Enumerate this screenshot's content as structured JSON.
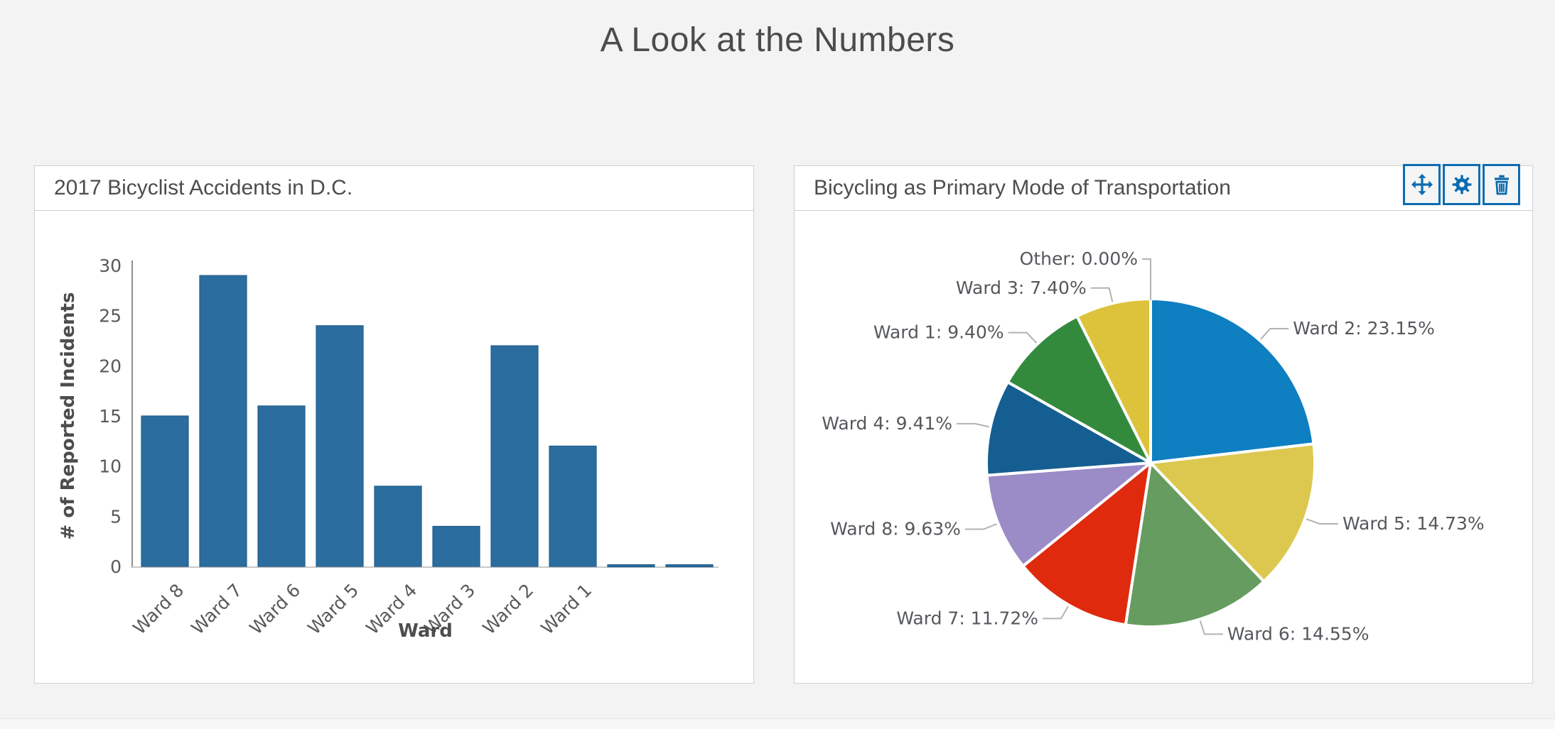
{
  "page": {
    "title": "A Look at the Numbers",
    "background": "#f3f3f4",
    "accent_blue": "#0c6cb0"
  },
  "panels": {
    "bar_widget": {
      "title": "2017 Bicyclist Accidents in D.C."
    },
    "pie_widget": {
      "title": "Bicycling as Primary Mode of Transportation",
      "toolbar": [
        {
          "name": "move",
          "icon": "move-icon"
        },
        {
          "name": "settings",
          "icon": "gear-icon"
        },
        {
          "name": "delete",
          "icon": "trash-icon"
        }
      ]
    }
  },
  "chart_data": [
    {
      "type": "bar",
      "title": "2017 Bicyclist Accidents in D.C.",
      "categories": [
        "Ward 8",
        "Ward 7",
        "Ward 6",
        "Ward 5",
        "Ward 4",
        "Ward 3",
        "Ward 2",
        "Ward 1",
        "",
        ""
      ],
      "values": [
        15,
        29,
        16,
        24,
        8,
        4,
        22,
        12,
        0,
        0
      ],
      "xlabel": "Ward",
      "ylabel": "# of Reported Incidents",
      "ylim": [
        0,
        30
      ],
      "yticks": [
        0,
        5,
        10,
        15,
        20,
        25,
        30
      ],
      "bar_color": "#2b6d9e",
      "bar_edge_color": "#235e8d",
      "axis_color": "#8e8e8e",
      "baseline_color": "#c9c9c9",
      "tick_label_color": "#595959",
      "axis_title_color": "#4d4d4d",
      "grid": false,
      "x_tick_rotation": 45
    },
    {
      "type": "pie",
      "title": "Bicycling as Primary Mode of Transportation",
      "start_angle": "12-o-clock",
      "direction": "clockwise",
      "label_style": "outside-with-leader-lines",
      "label_color": "#55585c",
      "leader_color": "#b3b3b3",
      "slices": [
        {
          "label": "Ward 2",
          "pct": 23.15,
          "display": "Ward 2: 23.15%",
          "color": "#0e7fc1"
        },
        {
          "label": "Ward 5",
          "pct": 14.73,
          "display": "Ward 5: 14.73%",
          "color": "#ddc84f"
        },
        {
          "label": "Ward 6",
          "pct": 14.55,
          "display": "Ward 6: 14.55%",
          "color": "#669c60"
        },
        {
          "label": "Ward 7",
          "pct": 11.72,
          "display": "Ward 7: 11.72%",
          "color": "#df2a0e"
        },
        {
          "label": "Ward 8",
          "pct": 9.63,
          "display": "Ward 8: 9.63%",
          "color": "#9b8bc7"
        },
        {
          "label": "Ward 4",
          "pct": 9.41,
          "display": "Ward 4: 9.41%",
          "color": "#155e91"
        },
        {
          "label": "Ward 1",
          "pct": 9.4,
          "display": "Ward 1: 9.40%",
          "color": "#338a3d"
        },
        {
          "label": "Ward 3",
          "pct": 7.4,
          "display": "Ward 3: 7.40%",
          "color": "#dcc33b"
        },
        {
          "label": "Other",
          "pct": 0.0,
          "display": "Other: 0.00%",
          "color": "#0e7fc1"
        }
      ]
    }
  ]
}
